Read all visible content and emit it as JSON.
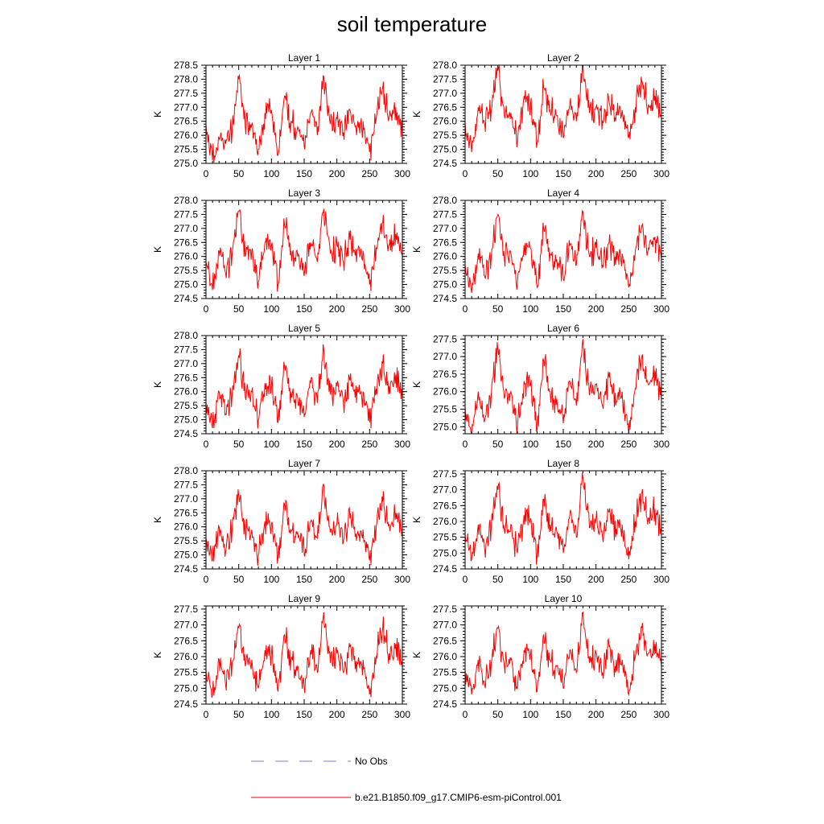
{
  "figure": {
    "title": "soil temperature"
  },
  "legend": [
    {
      "label": "No Obs",
      "color": "#7f7fcc",
      "style": "dashed"
    },
    {
      "label": "b.e21.B1850.f09_g17.CMIP6-esm-piControl.001",
      "color": "#ff0000",
      "style": "solid"
    }
  ],
  "chart_data": [
    {
      "type": "line",
      "title": "Layer 1",
      "ylabel": "K",
      "xlim": [
        0,
        300
      ],
      "ylim": [
        275.0,
        278.5
      ],
      "xticks": [
        0,
        50,
        100,
        150,
        200,
        250,
        300
      ],
      "yticks": [
        275.0,
        275.5,
        276.0,
        276.5,
        277.0,
        277.5,
        278.0,
        278.5
      ],
      "series": [
        {
          "name": "b.e21.B1850.f09_g17.CMIP6-esm-piControl.001",
          "color": "#ff0000",
          "x": [
            0,
            10,
            20,
            30,
            40,
            50,
            60,
            70,
            80,
            90,
            100,
            110,
            120,
            130,
            140,
            150,
            160,
            170,
            180,
            190,
            200,
            210,
            220,
            230,
            240,
            250,
            260,
            270,
            280,
            290,
            300
          ],
          "values": [
            276.4,
            275.1,
            275.9,
            275.7,
            276.1,
            278.0,
            276.3,
            276.4,
            275.5,
            276.8,
            276.9,
            275.3,
            277.4,
            276.5,
            276.3,
            275.6,
            276.8,
            276.0,
            278.1,
            276.4,
            276.6,
            276.1,
            276.9,
            276.0,
            276.5,
            275.4,
            276.6,
            277.7,
            276.7,
            277.0,
            276.1
          ]
        }
      ]
    },
    {
      "type": "line",
      "title": "Layer 2",
      "ylabel": "K",
      "xlim": [
        0,
        300
      ],
      "ylim": [
        274.5,
        278.0
      ],
      "xticks": [
        0,
        50,
        100,
        150,
        200,
        250,
        300
      ],
      "yticks": [
        274.5,
        275.0,
        275.5,
        276.0,
        276.5,
        277.0,
        277.5,
        278.0
      ],
      "series": [
        {
          "name": "b.e21.B1850.f09_g17.CMIP6-esm-piControl.001",
          "color": "#ff0000",
          "x": [
            0,
            10,
            20,
            30,
            40,
            50,
            60,
            70,
            80,
            90,
            100,
            110,
            120,
            130,
            140,
            150,
            160,
            170,
            180,
            190,
            200,
            210,
            220,
            230,
            240,
            250,
            260,
            270,
            280,
            290,
            300
          ],
          "values": [
            276.0,
            274.9,
            276.5,
            275.9,
            276.4,
            277.8,
            276.2,
            276.3,
            275.3,
            276.9,
            276.6,
            275.2,
            277.2,
            276.4,
            276.2,
            275.4,
            276.6,
            276.0,
            277.9,
            276.3,
            276.5,
            276.0,
            276.7,
            276.0,
            276.4,
            275.4,
            276.5,
            277.4,
            276.6,
            276.9,
            276.2
          ]
        }
      ]
    },
    {
      "type": "line",
      "title": "Layer 3",
      "ylabel": "K",
      "xlim": [
        0,
        300
      ],
      "ylim": [
        274.5,
        278.0
      ],
      "xticks": [
        0,
        50,
        100,
        150,
        200,
        250,
        300
      ],
      "yticks": [
        274.5,
        275.0,
        275.5,
        276.0,
        276.5,
        277.0,
        277.5,
        278.0
      ],
      "series": [
        {
          "name": "b.e21.B1850.f09_g17.CMIP6-esm-piControl.001",
          "color": "#ff0000",
          "x": [
            0,
            10,
            20,
            30,
            40,
            50,
            60,
            70,
            80,
            90,
            100,
            110,
            120,
            130,
            140,
            150,
            160,
            170,
            180,
            190,
            200,
            210,
            220,
            230,
            240,
            250,
            260,
            270,
            280,
            290,
            300
          ],
          "values": [
            275.8,
            274.8,
            276.2,
            275.4,
            276.1,
            277.6,
            276.0,
            276.2,
            275.1,
            276.5,
            276.4,
            275.0,
            277.1,
            276.2,
            276.0,
            275.3,
            276.5,
            275.8,
            277.7,
            276.1,
            276.4,
            275.8,
            276.6,
            275.8,
            276.2,
            275.0,
            276.3,
            277.2,
            276.4,
            276.8,
            276.0
          ]
        }
      ]
    },
    {
      "type": "line",
      "title": "Layer 4",
      "ylabel": "K",
      "xlim": [
        0,
        300
      ],
      "ylim": [
        274.5,
        278.0
      ],
      "xticks": [
        0,
        50,
        100,
        150,
        200,
        250,
        300
      ],
      "yticks": [
        274.5,
        275.0,
        275.5,
        276.0,
        276.5,
        277.0,
        277.5,
        278.0
      ],
      "series": [
        {
          "name": "b.e21.B1850.f09_g17.CMIP6-esm-piControl.001",
          "color": "#ff0000",
          "x": [
            0,
            10,
            20,
            30,
            40,
            50,
            60,
            70,
            80,
            90,
            100,
            110,
            120,
            130,
            140,
            150,
            160,
            170,
            180,
            190,
            200,
            210,
            220,
            230,
            240,
            250,
            260,
            270,
            280,
            290,
            300
          ],
          "values": [
            275.7,
            274.7,
            276.1,
            275.3,
            276.0,
            277.5,
            275.9,
            276.1,
            275.1,
            276.4,
            276.3,
            274.9,
            277.0,
            276.1,
            275.9,
            275.2,
            276.4,
            275.7,
            277.6,
            276.0,
            276.3,
            275.7,
            276.5,
            275.7,
            276.1,
            274.9,
            276.2,
            277.1,
            276.3,
            276.7,
            275.9
          ]
        }
      ]
    },
    {
      "type": "line",
      "title": "Layer 5",
      "ylabel": "K",
      "xlim": [
        0,
        300
      ],
      "ylim": [
        274.5,
        278.0
      ],
      "xticks": [
        0,
        50,
        100,
        150,
        200,
        250,
        300
      ],
      "yticks": [
        274.5,
        275.0,
        275.5,
        276.0,
        276.5,
        277.0,
        277.5,
        278.0
      ],
      "series": [
        {
          "name": "b.e21.B1850.f09_g17.CMIP6-esm-piControl.001",
          "color": "#ff0000",
          "x": [
            0,
            10,
            20,
            30,
            40,
            50,
            60,
            70,
            80,
            90,
            100,
            110,
            120,
            130,
            140,
            150,
            160,
            170,
            180,
            190,
            200,
            210,
            220,
            230,
            240,
            250,
            260,
            270,
            280,
            290,
            300
          ],
          "values": [
            275.6,
            274.7,
            276.0,
            275.2,
            275.9,
            277.3,
            275.8,
            276.0,
            275.0,
            276.3,
            276.2,
            274.9,
            276.9,
            276.0,
            275.8,
            275.1,
            276.3,
            275.6,
            277.5,
            275.9,
            276.2,
            275.6,
            276.4,
            275.6,
            276.0,
            274.9,
            276.1,
            277.0,
            276.2,
            276.6,
            275.8
          ]
        }
      ]
    },
    {
      "type": "line",
      "title": "Layer 6",
      "ylabel": "K",
      "xlim": [
        0,
        300
      ],
      "ylim": [
        274.8,
        277.6
      ],
      "xticks": [
        0,
        50,
        100,
        150,
        200,
        250,
        300
      ],
      "yticks": [
        275.0,
        275.5,
        276.0,
        276.5,
        277.0,
        277.5
      ],
      "series": [
        {
          "name": "b.e21.B1850.f09_g17.CMIP6-esm-piControl.001",
          "color": "#ff0000",
          "x": [
            0,
            10,
            20,
            30,
            40,
            50,
            60,
            70,
            80,
            90,
            100,
            110,
            120,
            130,
            140,
            150,
            160,
            170,
            180,
            190,
            200,
            210,
            220,
            230,
            240,
            250,
            260,
            270,
            280,
            290,
            300
          ],
          "values": [
            275.6,
            274.8,
            276.0,
            275.2,
            275.9,
            277.2,
            275.8,
            276.0,
            275.0,
            276.3,
            276.2,
            274.9,
            276.9,
            276.0,
            275.8,
            275.1,
            276.3,
            275.6,
            277.5,
            275.9,
            276.2,
            275.6,
            276.4,
            275.6,
            276.0,
            274.8,
            276.1,
            277.0,
            276.2,
            276.6,
            275.8
          ]
        }
      ]
    },
    {
      "type": "line",
      "title": "Layer 7",
      "ylabel": "K",
      "xlim": [
        0,
        300
      ],
      "ylim": [
        274.5,
        278.0
      ],
      "xticks": [
        0,
        50,
        100,
        150,
        200,
        250,
        300
      ],
      "yticks": [
        274.5,
        275.0,
        275.5,
        276.0,
        276.5,
        277.0,
        277.5,
        278.0
      ],
      "series": [
        {
          "name": "b.e21.B1850.f09_g17.CMIP6-esm-piControl.001",
          "color": "#ff0000",
          "x": [
            0,
            10,
            20,
            30,
            40,
            50,
            60,
            70,
            80,
            90,
            100,
            110,
            120,
            130,
            140,
            150,
            160,
            170,
            180,
            190,
            200,
            210,
            220,
            230,
            240,
            250,
            260,
            270,
            280,
            290,
            300
          ],
          "values": [
            275.6,
            274.8,
            276.0,
            275.1,
            275.9,
            277.1,
            275.8,
            275.9,
            275.0,
            276.2,
            276.1,
            274.9,
            276.8,
            275.9,
            275.8,
            275.0,
            276.2,
            275.6,
            277.5,
            275.8,
            276.1,
            275.5,
            276.3,
            275.5,
            275.9,
            274.8,
            276.0,
            276.9,
            276.1,
            276.5,
            275.7
          ]
        }
      ]
    },
    {
      "type": "line",
      "title": "Layer 8",
      "ylabel": "K",
      "xlim": [
        0,
        300
      ],
      "ylim": [
        274.5,
        277.6
      ],
      "xticks": [
        0,
        50,
        100,
        150,
        200,
        250,
        300
      ],
      "yticks": [
        274.5,
        275.0,
        275.5,
        276.0,
        276.5,
        277.0,
        277.5
      ],
      "series": [
        {
          "name": "b.e21.B1850.f09_g17.CMIP6-esm-piControl.001",
          "color": "#ff0000",
          "x": [
            0,
            10,
            20,
            30,
            40,
            50,
            60,
            70,
            80,
            90,
            100,
            110,
            120,
            130,
            140,
            150,
            160,
            170,
            180,
            190,
            200,
            210,
            220,
            230,
            240,
            250,
            260,
            270,
            280,
            290,
            300
          ],
          "values": [
            275.6,
            274.8,
            275.9,
            275.1,
            275.8,
            277.0,
            275.7,
            275.9,
            275.0,
            276.2,
            276.1,
            274.9,
            276.7,
            275.9,
            275.7,
            275.0,
            276.2,
            275.5,
            277.4,
            275.8,
            276.1,
            275.5,
            276.3,
            275.5,
            275.9,
            274.8,
            276.0,
            276.9,
            276.1,
            276.4,
            275.7
          ]
        }
      ]
    },
    {
      "type": "line",
      "title": "Layer 9",
      "ylabel": "K",
      "xlim": [
        0,
        300
      ],
      "ylim": [
        274.5,
        277.6
      ],
      "xticks": [
        0,
        50,
        100,
        150,
        200,
        250,
        300
      ],
      "yticks": [
        274.5,
        275.0,
        275.5,
        276.0,
        276.5,
        277.0,
        277.5
      ],
      "series": [
        {
          "name": "b.e21.B1850.f09_g17.CMIP6-esm-piControl.001",
          "color": "#ff0000",
          "x": [
            0,
            10,
            20,
            30,
            40,
            50,
            60,
            70,
            80,
            90,
            100,
            110,
            120,
            130,
            140,
            150,
            160,
            170,
            180,
            190,
            200,
            210,
            220,
            230,
            240,
            250,
            260,
            270,
            280,
            290,
            300
          ],
          "values": [
            275.6,
            274.8,
            275.9,
            275.1,
            275.8,
            276.9,
            275.7,
            275.9,
            275.0,
            276.2,
            276.1,
            274.9,
            276.7,
            275.9,
            275.7,
            275.0,
            276.2,
            275.5,
            277.4,
            275.8,
            276.1,
            275.5,
            276.3,
            275.5,
            275.9,
            274.8,
            276.0,
            276.9,
            276.1,
            276.4,
            275.7
          ]
        }
      ]
    },
    {
      "type": "line",
      "title": "Layer 10",
      "ylabel": "K",
      "xlim": [
        0,
        300
      ],
      "ylim": [
        274.5,
        277.6
      ],
      "xticks": [
        0,
        50,
        100,
        150,
        200,
        250,
        300
      ],
      "yticks": [
        274.5,
        275.0,
        275.5,
        276.0,
        276.5,
        277.0,
        277.5
      ],
      "series": [
        {
          "name": "b.e21.B1850.f09_g17.CMIP6-esm-piControl.001",
          "color": "#ff0000",
          "x": [
            0,
            10,
            20,
            30,
            40,
            50,
            60,
            70,
            80,
            90,
            100,
            110,
            120,
            130,
            140,
            150,
            160,
            170,
            180,
            190,
            200,
            210,
            220,
            230,
            240,
            250,
            260,
            270,
            280,
            290,
            300
          ],
          "values": [
            275.6,
            274.8,
            275.9,
            275.1,
            275.8,
            276.9,
            275.7,
            275.9,
            275.0,
            276.2,
            276.1,
            274.9,
            276.7,
            275.9,
            275.7,
            275.0,
            276.2,
            275.5,
            277.4,
            275.8,
            276.1,
            275.5,
            276.3,
            275.5,
            275.9,
            274.8,
            276.0,
            276.9,
            276.1,
            276.4,
            275.7
          ]
        }
      ]
    }
  ]
}
